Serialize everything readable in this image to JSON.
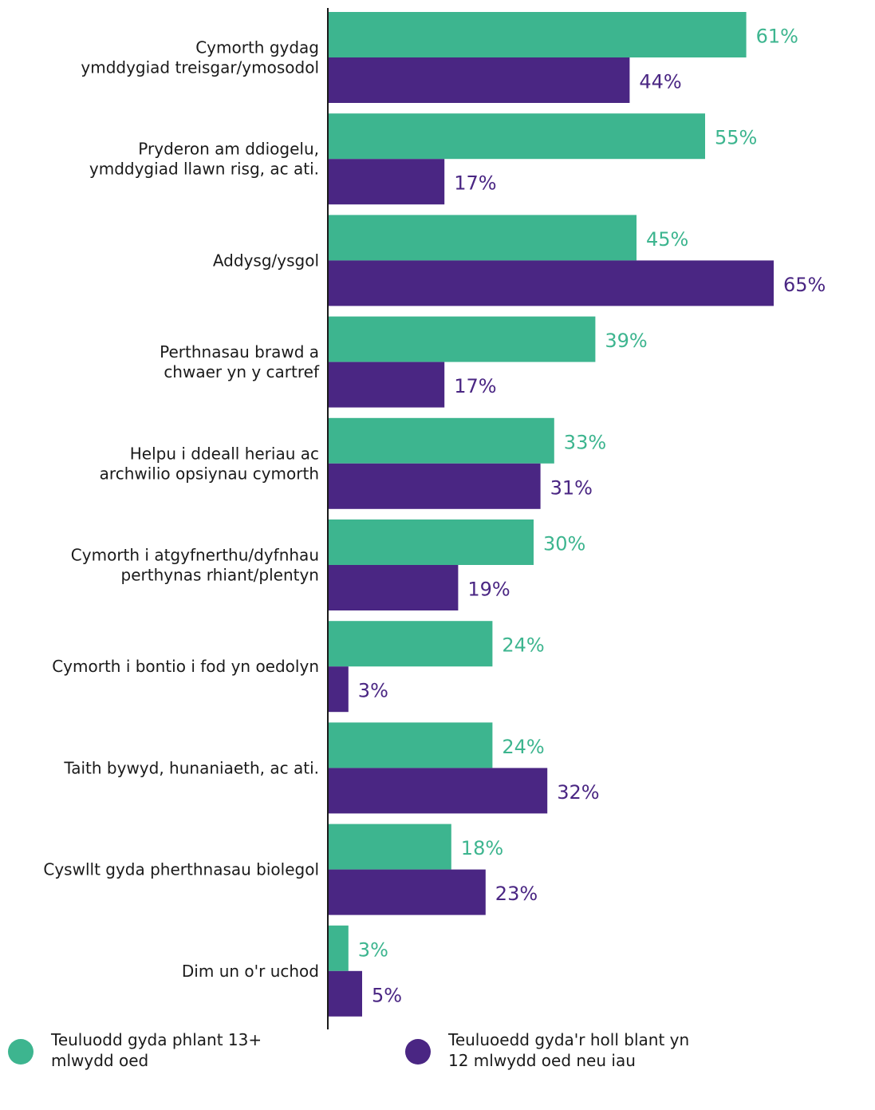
{
  "chart_data": {
    "type": "bar",
    "orientation": "horizontal",
    "categories": [
      "Cymorth gydag\nymddygiad treisgar/ymosodol",
      "Pryderon am ddiogelu,\nymddygiad llawn risg, ac ati.",
      "Addysg/ysgol",
      "Perthnasau brawd a\nchwaer yn y cartref",
      "Helpu i ddeall heriau ac\narchwilio opsiynau cymorth",
      "Cymorth i atgyfnerthu/dyfnhau\nperthynas rhiant/plentyn",
      "Cymorth i bontio i fod yn oedolyn",
      "Taith bywyd, hunaniaeth, ac ati.",
      "Cyswllt gyda pherthnasau biolegol",
      "Dim un o'r uchod"
    ],
    "series": [
      {
        "name": "Teuluodd gyda phlant 13+\nmlwydd oed",
        "color": "#3db58f",
        "values": [
          61,
          55,
          45,
          39,
          33,
          30,
          24,
          24,
          18,
          3
        ],
        "labels": [
          "61%",
          "55%",
          "45%",
          "39%",
          "33%",
          "30%",
          "24%",
          "24%",
          "18%",
          "3%"
        ]
      },
      {
        "name": "Teuluoedd gyda'r holl blant yn\n12 mlwydd oed neu iau",
        "color": "#4a2683",
        "values": [
          44,
          17,
          65,
          17,
          31,
          19,
          3,
          32,
          23,
          5
        ],
        "labels": [
          "44%",
          "17%",
          "65%",
          "17%",
          "31%",
          "19%",
          "3%",
          "32%",
          "23%",
          "5%"
        ]
      }
    ],
    "xlim": [
      0,
      75
    ],
    "grid": false,
    "legend_position": "bottom"
  }
}
